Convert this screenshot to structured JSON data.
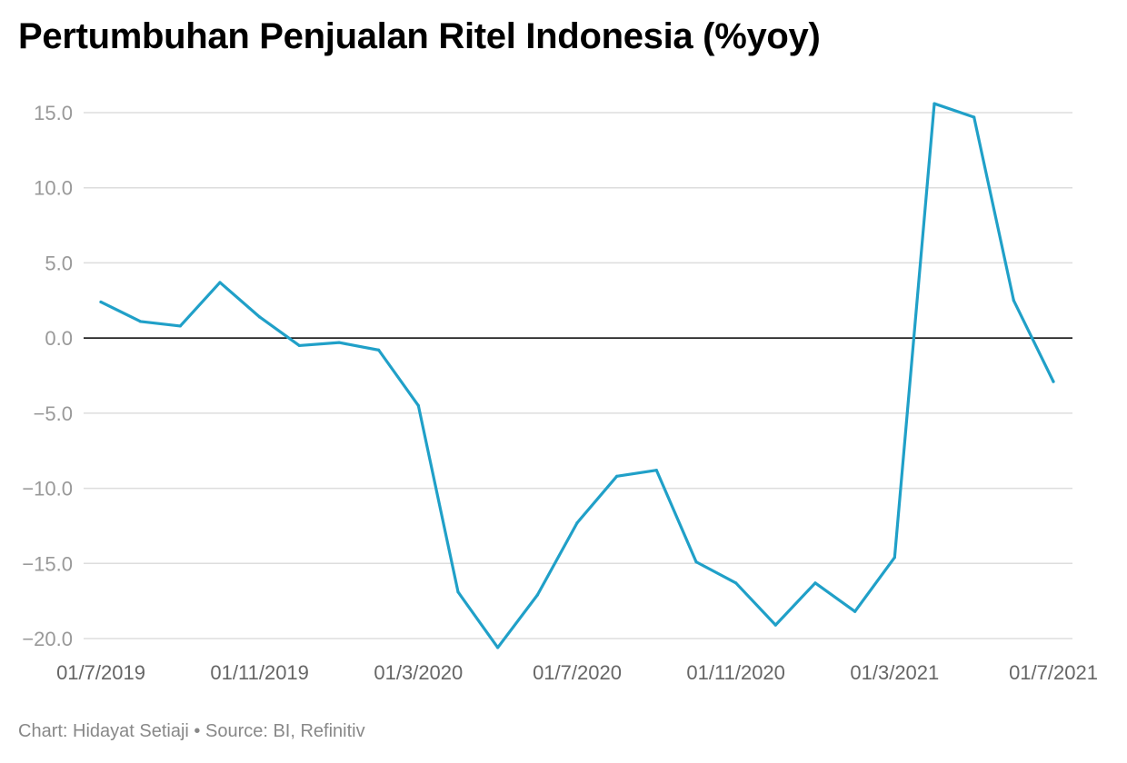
{
  "chart_data": {
    "type": "line",
    "title": "Pertumbuhan Penjualan Ritel Indonesia (%yoy)",
    "x": [
      "01/7/2019",
      "01/8/2019",
      "01/9/2019",
      "01/10/2019",
      "01/11/2019",
      "01/12/2019",
      "01/1/2020",
      "01/2/2020",
      "01/3/2020",
      "01/4/2020",
      "01/5/2020",
      "01/6/2020",
      "01/7/2020",
      "01/8/2020",
      "01/9/2020",
      "01/10/2020",
      "01/11/2020",
      "01/12/2020",
      "01/1/2021",
      "01/2/2021",
      "01/3/2021",
      "01/4/2021",
      "01/5/2021",
      "01/6/2021",
      "01/7/2021"
    ],
    "series": [
      {
        "values": [
          2.4,
          1.1,
          0.8,
          3.7,
          1.4,
          -0.5,
          -0.3,
          -0.8,
          -4.5,
          -16.9,
          -20.6,
          -17.1,
          -12.3,
          -9.2,
          -8.8,
          -14.9,
          -16.3,
          -19.1,
          -16.3,
          -18.2,
          -14.6,
          15.6,
          14.7,
          2.5,
          -2.9
        ],
        "color": "#20a0c8"
      }
    ],
    "xticks": [
      "01/7/2019",
      "01/11/2019",
      "01/3/2020",
      "01/7/2020",
      "01/11/2020",
      "01/3/2021",
      "01/7/2021"
    ],
    "yticks": [
      "15.0",
      "10.0",
      "5.0",
      "0.0",
      "−5.0",
      "−10.0",
      "−15.0",
      "−20.0"
    ],
    "ytick_values": [
      15,
      10,
      5,
      0,
      -5,
      -10,
      -15,
      -20
    ],
    "ylim": [
      -20,
      15
    ],
    "xlabel": "",
    "ylabel": "",
    "grid": true,
    "zero_line": true
  },
  "footer": "Chart: Hidayat Setiaji • Source: BI, Refinitiv",
  "colors": {
    "line": "#20a0c8",
    "grid": "#dddddd",
    "axis_text": "#999999",
    "zero_line": "#000000"
  }
}
